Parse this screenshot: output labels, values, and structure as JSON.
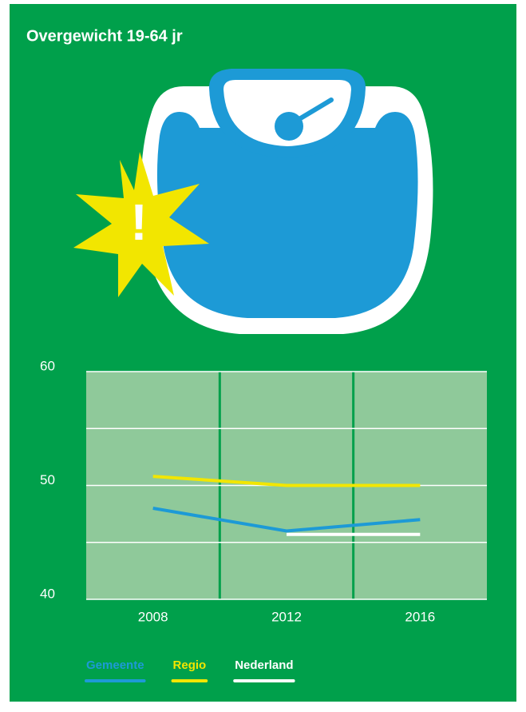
{
  "chart_data": {
    "type": "line",
    "title": "Overgewicht 19-64 jr",
    "categories": [
      "2008",
      "2012",
      "2016"
    ],
    "series": [
      {
        "name": "Gemeente",
        "color": "#1d9ad6",
        "values": [
          48,
          46,
          47
        ]
      },
      {
        "name": "Regio",
        "color": "#f2e600",
        "values": [
          50.8,
          50,
          50
        ]
      },
      {
        "name": "Nederland",
        "color": "#ffffff",
        "values": [
          null,
          45.7,
          45.7
        ]
      }
    ],
    "ylim": [
      40,
      60
    ],
    "yticks": [
      40,
      50,
      60
    ],
    "minor_yticks": [
      45,
      55
    ],
    "grid": true
  }
}
